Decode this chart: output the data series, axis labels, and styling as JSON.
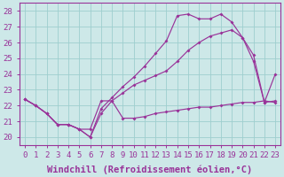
{
  "xlabel": "Windchill (Refroidissement éolien,°C)",
  "x_ticks": [
    0,
    1,
    2,
    3,
    4,
    5,
    6,
    7,
    8,
    9,
    10,
    11,
    12,
    13,
    14,
    15,
    16,
    17,
    18,
    19,
    20,
    21,
    22,
    23
  ],
  "ylim": [
    19.5,
    28.5
  ],
  "xlim": [
    -0.5,
    23.5
  ],
  "yticks": [
    20,
    21,
    22,
    23,
    24,
    25,
    26,
    27,
    28
  ],
  "line1_x": [
    0,
    1,
    2,
    3,
    4,
    5,
    6,
    7,
    8,
    9,
    10,
    11,
    12,
    13,
    14,
    15,
    16,
    17,
    18,
    19,
    20,
    21,
    22,
    23
  ],
  "line1_y": [
    22.4,
    22.0,
    21.5,
    20.8,
    20.8,
    20.5,
    20.0,
    21.8,
    22.5,
    23.2,
    23.8,
    24.5,
    25.3,
    26.1,
    27.7,
    27.8,
    27.5,
    27.5,
    27.8,
    27.3,
    26.3,
    24.8,
    22.2,
    24.0
  ],
  "line2_x": [
    0,
    1,
    2,
    3,
    4,
    5,
    6,
    7,
    8,
    9,
    10,
    11,
    12,
    13,
    14,
    15,
    16,
    17,
    18,
    19,
    20,
    21,
    22,
    23
  ],
  "line2_y": [
    22.4,
    22.0,
    21.5,
    20.8,
    20.8,
    20.5,
    20.0,
    21.5,
    22.3,
    22.8,
    23.3,
    23.6,
    23.9,
    24.2,
    24.8,
    25.5,
    26.0,
    26.4,
    26.6,
    26.8,
    26.3,
    25.2,
    22.2,
    22.3
  ],
  "line3_x": [
    0,
    1,
    2,
    3,
    4,
    5,
    6,
    7,
    8,
    9,
    10,
    11,
    12,
    13,
    14,
    15,
    16,
    17,
    18,
    19,
    20,
    21,
    22,
    23
  ],
  "line3_y": [
    22.4,
    22.0,
    21.5,
    20.8,
    20.8,
    20.5,
    20.5,
    22.3,
    22.3,
    21.2,
    21.2,
    21.3,
    21.5,
    21.6,
    21.7,
    21.8,
    21.9,
    21.9,
    22.0,
    22.1,
    22.2,
    22.2,
    22.3,
    22.2
  ],
  "line_color": "#993399",
  "bg_color": "#cde8e8",
  "grid_color": "#9ecece",
  "tick_fontsize": 6.5,
  "label_fontsize": 7.5
}
